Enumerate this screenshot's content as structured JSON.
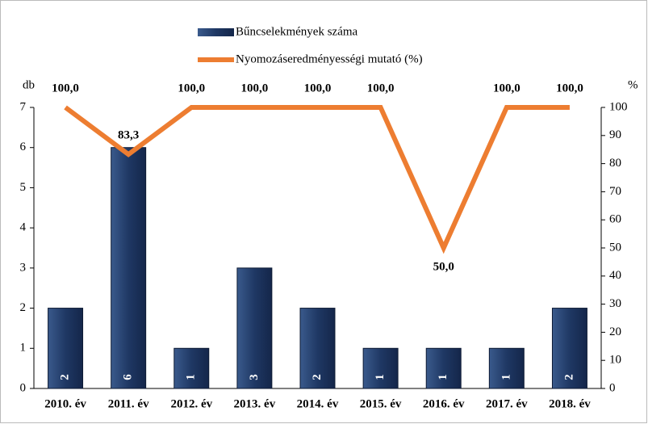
{
  "chart_data": {
    "type": "bar-line",
    "categories": [
      "2010. év",
      "2011. év",
      "2012. év",
      "2013. év",
      "2014. év",
      "2015. év",
      "2016. év",
      "2017. év",
      "2018. év"
    ],
    "series": [
      {
        "name": "Bűncselekmények száma",
        "type": "bar",
        "color": "#1f3864",
        "values": [
          2,
          6,
          1,
          3,
          2,
          1,
          1,
          1,
          2
        ]
      },
      {
        "name": "Nyomozáseredményességi mutató (%)",
        "type": "line",
        "axis": "y2",
        "color": "#ed7d31",
        "values": [
          100,
          83.3,
          100,
          100,
          100,
          100,
          50,
          100,
          100
        ],
        "value_labels": [
          "100,0",
          "83,3",
          "100,0",
          "100,0",
          "100,0",
          "100,0",
          "50,0",
          "100,0",
          "100,0"
        ]
      }
    ],
    "ylabel": "db",
    "y2label": "%",
    "ylim": [
      0,
      7
    ],
    "yticks": [
      0,
      1,
      2,
      3,
      4,
      5,
      6,
      7
    ],
    "y2lim": [
      0,
      100
    ],
    "y2ticks": [
      0,
      10,
      20,
      30,
      40,
      50,
      60,
      70,
      80,
      90,
      100
    ],
    "grid": false
  }
}
